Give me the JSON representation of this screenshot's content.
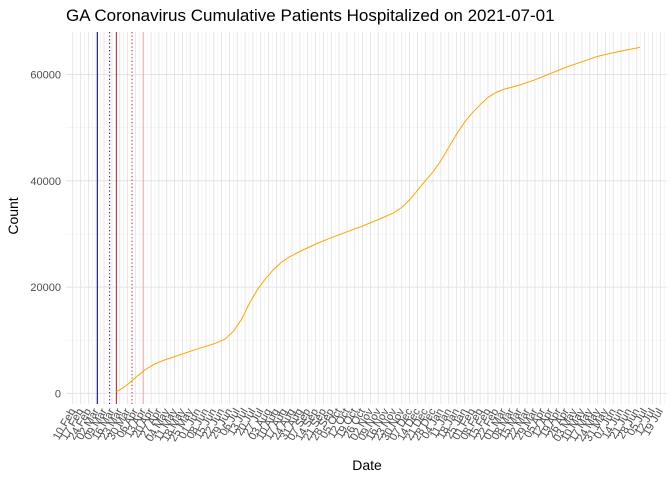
{
  "chart_data": {
    "type": "line",
    "title": "GA Coronavirus Cumulative Patients Hospitalized on 2021-07-01",
    "xlabel": "Date",
    "ylabel": "Count",
    "ylim": [
      -2000,
      68000
    ],
    "xlim": [
      "2020-02-04",
      "2021-07-25"
    ],
    "y_ticks": [
      0,
      20000,
      40000,
      60000
    ],
    "y_tick_labels": [
      "0",
      "20000",
      "40000",
      "60000"
    ],
    "x_tick_start": "2020-02-10",
    "x_tick_step_days": 7,
    "x_tick_labels": [
      "10 Feb",
      "17 Feb",
      "24 Feb",
      "02 Mar",
      "09 Mar",
      "16 Mar",
      "23 Mar",
      "30 Mar",
      "06 Apr",
      "13 Apr",
      "20 Apr",
      "27 Apr",
      "04 May",
      "11 May",
      "18 May",
      "25 May",
      "01 Jun",
      "08 Jun",
      "15 Jun",
      "22 Jun",
      "29 Jun",
      "06 Jul",
      "13 Jul",
      "20 Jul",
      "27 Jul",
      "03 Aug",
      "10 Aug",
      "17 Aug",
      "24 Aug",
      "31 Aug",
      "07 Sep",
      "14 Sep",
      "21 Sep",
      "28 Sep",
      "05 Oct",
      "12 Oct",
      "19 Oct",
      "26 Oct",
      "02 Nov",
      "09 Nov",
      "16 Nov",
      "23 Nov",
      "30 Nov",
      "07 Dec",
      "14 Dec",
      "21 Dec",
      "28 Dec",
      "04 Jan",
      "11 Jan",
      "18 Jan",
      "25 Jan",
      "01 Feb",
      "08 Feb",
      "15 Feb",
      "22 Feb",
      "01 Mar",
      "08 Mar",
      "15 Mar",
      "22 Mar",
      "29 Mar",
      "05 Apr",
      "12 Apr",
      "19 Apr",
      "26 Apr",
      "03 May",
      "10 May",
      "17 May",
      "24 May",
      "31 May",
      "07 Jun",
      "14 Jun",
      "21 Jun",
      "28 Jun",
      "05 Jul",
      "12 Jul",
      "19 Jul"
    ],
    "grid": true,
    "series": [
      {
        "color": "#FFA500",
        "points": [
          [
            "2020-03-20",
            300
          ],
          [
            "2020-03-25",
            900
          ],
          [
            "2020-04-01",
            2000
          ],
          [
            "2020-04-08",
            3300
          ],
          [
            "2020-04-15",
            4500
          ],
          [
            "2020-04-22",
            5400
          ],
          [
            "2020-05-01",
            6200
          ],
          [
            "2020-05-15",
            7200
          ],
          [
            "2020-06-01",
            8400
          ],
          [
            "2020-06-15",
            9300
          ],
          [
            "2020-06-25",
            10200
          ],
          [
            "2020-07-03",
            11800
          ],
          [
            "2020-07-10",
            14000
          ],
          [
            "2020-07-17",
            17000
          ],
          [
            "2020-07-24",
            19500
          ],
          [
            "2020-07-31",
            21500
          ],
          [
            "2020-08-07",
            23200
          ],
          [
            "2020-08-14",
            24600
          ],
          [
            "2020-08-21",
            25600
          ],
          [
            "2020-08-31",
            26700
          ],
          [
            "2020-09-14",
            28100
          ],
          [
            "2020-09-28",
            29300
          ],
          [
            "2020-10-12",
            30400
          ],
          [
            "2020-10-26",
            31500
          ],
          [
            "2020-11-09",
            32700
          ],
          [
            "2020-11-23",
            34000
          ],
          [
            "2020-11-30",
            35000
          ],
          [
            "2020-12-07",
            36400
          ],
          [
            "2020-12-14",
            38200
          ],
          [
            "2020-12-21",
            40000
          ],
          [
            "2020-12-28",
            41700
          ],
          [
            "2021-01-04",
            43800
          ],
          [
            "2021-01-11",
            46300
          ],
          [
            "2021-01-18",
            48800
          ],
          [
            "2021-01-25",
            51000
          ],
          [
            "2021-02-01",
            52800
          ],
          [
            "2021-02-08",
            54300
          ],
          [
            "2021-02-15",
            55700
          ],
          [
            "2021-02-22",
            56600
          ],
          [
            "2021-03-01",
            57200
          ],
          [
            "2021-03-15",
            58000
          ],
          [
            "2021-03-29",
            59000
          ],
          [
            "2021-04-12",
            60200
          ],
          [
            "2021-04-26",
            61400
          ],
          [
            "2021-05-10",
            62400
          ],
          [
            "2021-05-24",
            63400
          ],
          [
            "2021-06-07",
            64100
          ],
          [
            "2021-06-21",
            64700
          ],
          [
            "2021-07-01",
            65100
          ]
        ]
      }
    ],
    "reference_lines": [
      {
        "date": "2020-03-03",
        "color": "#00008B",
        "style": "solid"
      },
      {
        "date": "2020-03-14",
        "color": "#00008B",
        "style": "dotted"
      },
      {
        "date": "2020-03-20",
        "color": "#B22222",
        "style": "solid"
      },
      {
        "date": "2020-04-03",
        "color": "#B22222",
        "style": "dotted"
      },
      {
        "date": "2020-04-13",
        "color": "#F4A6A6",
        "style": "solid"
      }
    ]
  }
}
